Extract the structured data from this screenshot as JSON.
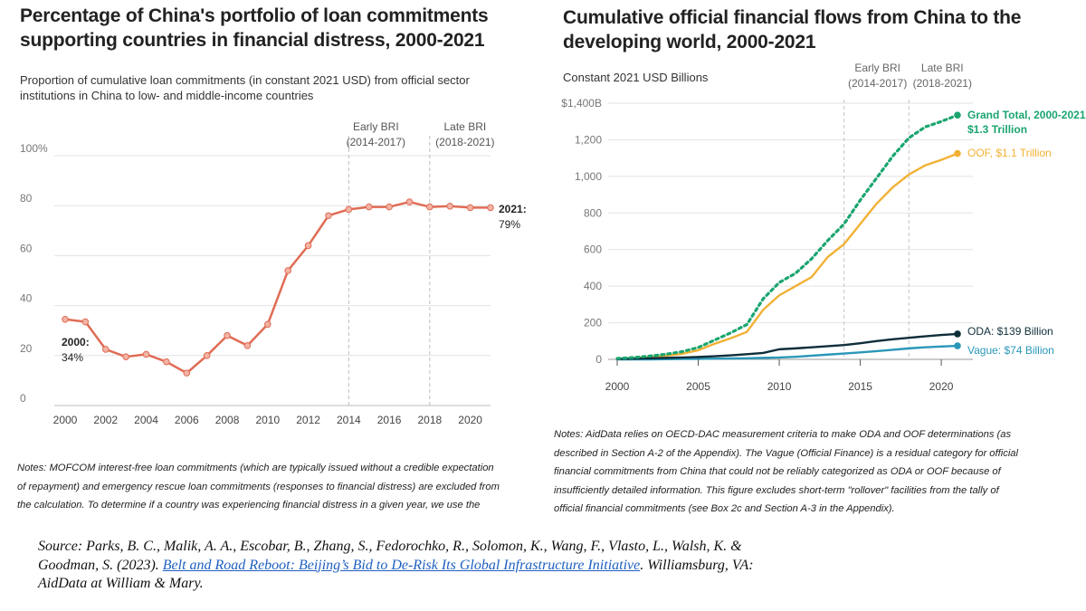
{
  "left_panel": {
    "title_line1": "Percentage of China's portfolio of loan commitments",
    "title_line2": "supporting countries in financial distress, 2000-2021",
    "subtitle_line1": "Proportion of cumulative loan commitments (in constant 2021 USD) from official sector",
    "subtitle_line2": "institutions in China to low- and middle-income countries",
    "notes_lines": [
      "Notes: MOFCOM interest-free loan commitments (which are typically issued without a credible expectation",
      "of repayment) and emergency rescue loan commitments (responses to financial distress) are excluded from",
      "the calculation. To determine if a country was experiencing financial distress in a given year, we use the"
    ]
  },
  "right_panel": {
    "title_line1": "Cumulative official financial flows from China to the",
    "title_line2": "developing world, 2000-2021",
    "unit_label": "Constant 2021 USD Billions",
    "notes_lines": [
      "Notes: AidData relies on OECD-DAC measurement criteria to make ODA and OOF determinations (as",
      "described in Section A-2 of the Appendix). The Vague (Official Finance) is a residual category for official",
      "financial commitments from China that could not be reliably categorized as ODA or OOF because of",
      "insufficiently detailed information. This figure excludes short-term \"rollover\" facilities from the tally of",
      "official financial commitments (see Box 2c and Section A-3 in the Appendix)."
    ]
  },
  "source": {
    "line1": "Source: Parks, B. C., Malik, A. A., Escobar, B., Zhang, S., Fedorochko, R., Solomon, K., Wang, F., Vlasto, L., Walsh, K. &",
    "line2_prefix": "Goodman, S. (2023). ",
    "link_text": "Belt and Road Reboot: Beijing’s Bid to De-Risk Its Global Infrastructure Initiative",
    "line2_suffix": ". Williamsburg, VA:",
    "line3": "AidData at William & Mary."
  },
  "chart_data": [
    {
      "type": "line",
      "x": [
        2000,
        2001,
        2002,
        2003,
        2004,
        2005,
        2006,
        2007,
        2008,
        2009,
        2010,
        2011,
        2012,
        2013,
        2014,
        2015,
        2016,
        2017,
        2018,
        2019,
        2020,
        2021
      ],
      "series": [
        {
          "values": [
            34.5,
            33.5,
            22.5,
            19.5,
            20.5,
            17.5,
            13,
            20,
            28,
            24,
            32.5,
            54,
            64,
            76,
            78.5,
            79.5,
            79.5,
            81.5,
            79.5,
            79.8,
            79.2,
            79.2
          ],
          "color": "#e06c55"
        }
      ],
      "x_ticks": [
        "2000",
        "2002",
        "2004",
        "2006",
        "2008",
        "2010",
        "2012",
        "2014",
        "2016",
        "2018",
        "2020"
      ],
      "y_ticks": [
        "0",
        "20",
        "40",
        "60",
        "80",
        "100%"
      ],
      "xlim": [
        2000,
        2021
      ],
      "ylim": [
        0,
        100
      ],
      "grid": true,
      "periods": [
        {
          "line1": "Early BRI",
          "line2": "(2014-2017)",
          "start": 2014
        },
        {
          "line1": "Late BRI",
          "line2": "(2018-2021)",
          "start": 2018
        }
      ],
      "annotations": [
        {
          "year_label": "2000:",
          "value_label": "34%"
        },
        {
          "year_label": "2021:",
          "value_label": "79%"
        }
      ]
    },
    {
      "type": "line",
      "x": [
        2000,
        2001,
        2002,
        2003,
        2004,
        2005,
        2006,
        2007,
        2008,
        2009,
        2010,
        2011,
        2012,
        2013,
        2014,
        2015,
        2016,
        2017,
        2018,
        2019,
        2020,
        2021
      ],
      "series": [
        {
          "name": "Grand Total, 2000-2021:",
          "name2": "$1.3 Trillion",
          "values": [
            5,
            10,
            18,
            28,
            42,
            65,
            105,
            145,
            190,
            330,
            420,
            470,
            550,
            650,
            740,
            870,
            990,
            1110,
            1210,
            1270,
            1300,
            1335
          ],
          "color": "#1aa56f",
          "dash": "3,4"
        },
        {
          "name": "OOF, $1.1 Trillion",
          "values": [
            3,
            6,
            12,
            20,
            30,
            50,
            85,
            115,
            150,
            270,
            350,
            400,
            450,
            560,
            630,
            740,
            850,
            940,
            1010,
            1060,
            1090,
            1125
          ],
          "color": "#f2b134"
        },
        {
          "name": "ODA: $139 Billion",
          "values": [
            2,
            4,
            6,
            8,
            10,
            13,
            17,
            22,
            28,
            35,
            55,
            60,
            66,
            72,
            78,
            88,
            100,
            110,
            118,
            126,
            133,
            139
          ],
          "color": "#0f2e3a"
        },
        {
          "name": "Vague: $74 Billion",
          "values": [
            0,
            0,
            0,
            1,
            2,
            3,
            4,
            5,
            6,
            8,
            10,
            14,
            20,
            26,
            32,
            38,
            45,
            52,
            60,
            66,
            70,
            74
          ],
          "color": "#2a97b8"
        }
      ],
      "x_ticks": [
        "2000",
        "2005",
        "2010",
        "2015",
        "2020"
      ],
      "y_ticks": [
        "0",
        "200",
        "400",
        "600",
        "800",
        "1,000",
        "1,200",
        "$1,400B"
      ],
      "xlim": [
        2000,
        2021
      ],
      "ylim": [
        0,
        1400
      ],
      "grid": true,
      "periods": [
        {
          "line1": "Early BRI",
          "line2": "(2014-2017)",
          "start": 2014
        },
        {
          "line1": "Late BRI",
          "line2": "(2018-2021)",
          "start": 2018
        }
      ]
    }
  ]
}
